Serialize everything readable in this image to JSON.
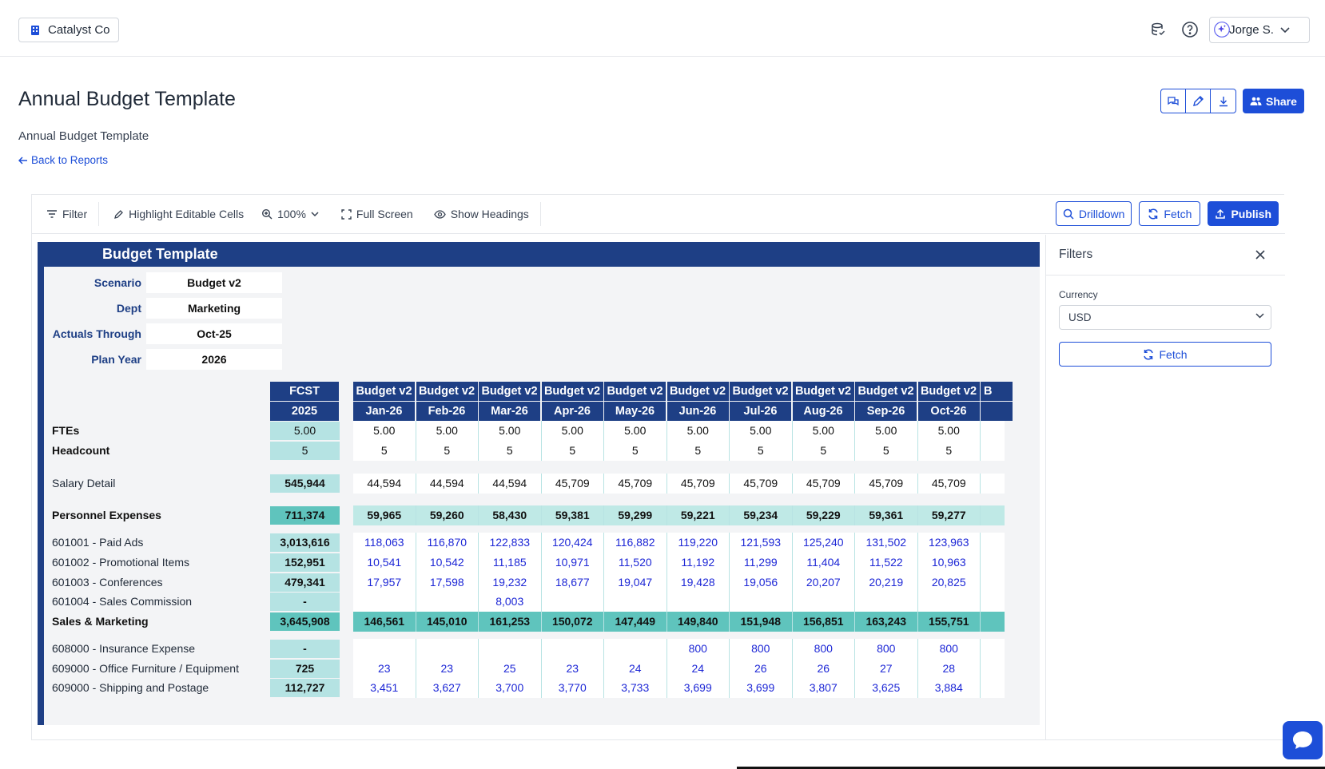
{
  "header": {
    "company": "Catalyst Co",
    "user": "Jorge S."
  },
  "page": {
    "title": "Annual Budget Template",
    "subtitle": "Annual Budget Template",
    "back_link": "Back to Reports",
    "share_label": "Share"
  },
  "toolbar": {
    "filter": "Filter",
    "highlight": "Highlight Editable Cells",
    "zoom": "100%",
    "fullscreen": "Full Screen",
    "show_headings": "Show Headings",
    "drilldown": "Drilldown",
    "fetch": "Fetch",
    "publish": "Publish"
  },
  "sheet": {
    "title": "Budget Template",
    "meta": [
      {
        "label": "Scenario",
        "value": "Budget v2"
      },
      {
        "label": "Dept",
        "value": "Marketing"
      },
      {
        "label": "Actuals Through",
        "value": "Oct-25"
      },
      {
        "label": "Plan Year",
        "value": "2026"
      }
    ],
    "fcst_header": [
      "FCST",
      "2025"
    ],
    "month_scenario": "Budget v2",
    "months": [
      "Jan-26",
      "Feb-26",
      "Mar-26",
      "Apr-26",
      "May-26",
      "Jun-26",
      "Jul-26",
      "Aug-26",
      "Sep-26",
      "Oct-26"
    ],
    "rows": [
      {
        "label": "FTEs",
        "bold": true,
        "fcst": "5.00",
        "values": [
          "5.00",
          "5.00",
          "5.00",
          "5.00",
          "5.00",
          "5.00",
          "5.00",
          "5.00",
          "5.00",
          "5.00"
        ],
        "style": "dark"
      },
      {
        "label": "Headcount",
        "bold": true,
        "fcst": "5",
        "values": [
          "5",
          "5",
          "5",
          "5",
          "5",
          "5",
          "5",
          "5",
          "5",
          "5"
        ],
        "style": "dark"
      },
      {
        "label": "Salary Detail",
        "bold": false,
        "fcst": "545,944",
        "values": [
          "44,594",
          "44,594",
          "44,594",
          "45,709",
          "45,709",
          "45,709",
          "45,709",
          "45,709",
          "45,709",
          "45,709"
        ],
        "style": "dark"
      },
      {
        "label": "Personnel Expenses",
        "bold": true,
        "fcst": "711,374",
        "values": [
          "59,965",
          "59,260",
          "58,430",
          "59,381",
          "59,299",
          "59,221",
          "59,234",
          "59,229",
          "59,361",
          "59,277"
        ],
        "style": "total"
      },
      {
        "label": "601001 - Paid Ads",
        "bold": false,
        "fcst": "3,013,616",
        "values": [
          "118,063",
          "116,870",
          "122,833",
          "120,424",
          "116,882",
          "119,220",
          "121,593",
          "125,240",
          "131,502",
          "123,963"
        ],
        "style": "blue"
      },
      {
        "label": "601002 - Promotional Items",
        "bold": false,
        "fcst": "152,951",
        "values": [
          "10,541",
          "10,542",
          "11,185",
          "10,971",
          "11,520",
          "11,192",
          "11,299",
          "11,404",
          "11,522",
          "10,963"
        ],
        "style": "blue"
      },
      {
        "label": "601003 - Conferences",
        "bold": false,
        "fcst": "479,341",
        "values": [
          "17,957",
          "17,598",
          "19,232",
          "18,677",
          "19,047",
          "19,428",
          "19,056",
          "20,207",
          "20,219",
          "20,825"
        ],
        "style": "blue"
      },
      {
        "label": "601004 - Sales Commission",
        "bold": false,
        "fcst": "-",
        "values": [
          "",
          "",
          "8,003",
          "",
          "",
          "",
          "",
          "",
          "",
          ""
        ],
        "style": "blue"
      },
      {
        "label": "Sales & Marketing",
        "bold": true,
        "fcst": "3,645,908",
        "values": [
          "146,561",
          "145,010",
          "161,253",
          "150,072",
          "147,449",
          "149,840",
          "151,948",
          "156,851",
          "163,243",
          "155,751"
        ],
        "style": "total2"
      },
      {
        "label": "608000 - Insurance Expense",
        "bold": false,
        "fcst": "-",
        "values": [
          "",
          "",
          "",
          "",
          "",
          "800",
          "800",
          "800",
          "800",
          "800"
        ],
        "style": "blue"
      },
      {
        "label": "609000 - Office Furniture / Equipment",
        "bold": false,
        "fcst": "725",
        "values": [
          "23",
          "23",
          "25",
          "23",
          "24",
          "24",
          "26",
          "26",
          "27",
          "28"
        ],
        "style": "blue"
      },
      {
        "label": "609000 - Shipping and Postage",
        "bold": false,
        "fcst": "112,727",
        "values": [
          "3,451",
          "3,627",
          "3,700",
          "3,770",
          "3,733",
          "3,699",
          "3,699",
          "3,807",
          "3,625",
          "3,884"
        ],
        "style": "blue"
      }
    ]
  },
  "filters_panel": {
    "title": "Filters",
    "currency_label": "Currency",
    "currency_value": "USD",
    "fetch_label": "Fetch"
  },
  "colors": {
    "navy": "#1e3f85",
    "accent": "#1d4ed8",
    "fcst_light": "#b5e3e3",
    "total_teal": "#5fc4bd",
    "total_light": "#bfe9e6"
  }
}
